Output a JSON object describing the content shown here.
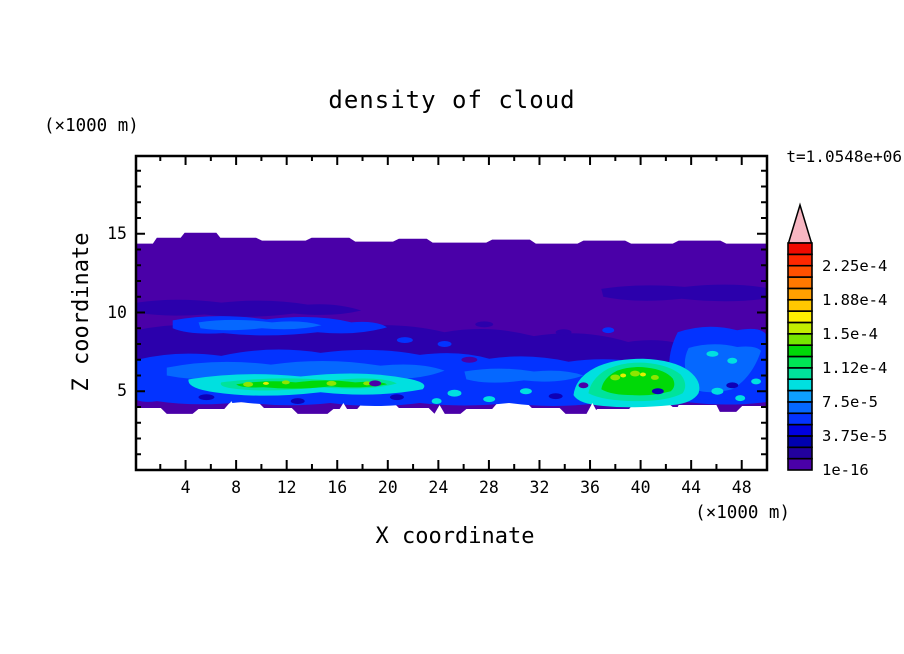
{
  "title": "density of cloud",
  "timestamp": "t=1.0548e+06",
  "axes": {
    "x": {
      "label": "X coordinate",
      "unit": "(×1000 m)",
      "range": [
        0,
        50
      ],
      "ticks": [
        4,
        8,
        12,
        16,
        20,
        24,
        28,
        32,
        36,
        40,
        44,
        48
      ],
      "minor_tick_step": 2
    },
    "z": {
      "label": "Z coordinate",
      "unit": "(×1000 m)",
      "range": [
        0,
        20
      ],
      "ticks": [
        5,
        10,
        15
      ],
      "minor_tick_step": 1
    }
  },
  "colorbar": {
    "labels": [
      "2.25e-4",
      "1.88e-4",
      "1.5e-4",
      "1.12e-4",
      "7.5e-5",
      "3.75e-5",
      "1e-16"
    ],
    "label_every_n_segments": 3,
    "segment_colors_bottom_to_top": [
      "#4A00A8",
      "#22009E",
      "#0000AF",
      "#0000E0",
      "#0333FF",
      "#0568FF",
      "#0E9FFF",
      "#00E0E0",
      "#00E39B",
      "#00E455",
      "#00D907",
      "#76E600",
      "#C3EE00",
      "#FFF100",
      "#FFC800",
      "#FFA000",
      "#FF7800",
      "#FF5000",
      "#FF2800",
      "#EF0A00"
    ],
    "overflow_arrow_color": "#F7B6C2"
  },
  "chart_data": {
    "type": "heatmap",
    "title": "density of cloud",
    "xlabel": "X coordinate",
    "ylabel": "Z coordinate",
    "x_unit": "(×1000 m)",
    "y_unit": "(×1000 m)",
    "xlim": [
      0,
      50
    ],
    "ylim": [
      0,
      20
    ],
    "x_ticks": [
      4,
      8,
      12,
      16,
      20,
      24,
      28,
      32,
      36,
      40,
      44,
      48
    ],
    "y_ticks": [
      5,
      10,
      15
    ],
    "time_annotation": "t=1.0548e+06",
    "contour_levels": [
      1e-16,
      1.25e-05,
      2.5e-05,
      3.75e-05,
      5e-05,
      6.25e-05,
      7.5e-05,
      8.75e-05,
      0.0001,
      0.0001125,
      0.000125,
      0.0001375,
      0.00015,
      0.0001625,
      0.000175,
      0.0001875,
      0.0002,
      0.0002125,
      0.000225,
      0.0002375,
      0.00025
    ],
    "labeled_levels": [
      "1e-16",
      "3.75e-5",
      "7.5e-5",
      "1.12e-4",
      "1.5e-4",
      "1.88e-4",
      "2.25e-4"
    ],
    "legend_position": "right colorbar with overflow arrow at top",
    "grid": false,
    "features": [
      {
        "region": "whole domain",
        "description": "cloud layer fills x = 0-50 between z = 3.5 and z = 14.8; background value just above 1e-16 (purple)"
      },
      {
        "region": "z = 9-10, x = 0-25 and x = 43-50",
        "description": "darker streaks around 1.25e-5 - 2.5e-5 (indigo)"
      },
      {
        "region": "z = 4-6.5, all x",
        "description": "moderate density band 2.5e-5 - 7.5e-5 (blue shades), speckled"
      },
      {
        "region": "x = 6-18, z = 4.5-5.5",
        "description": "high density core up to ~1.4e-4 (cyan/green with yellow-green specks)"
      },
      {
        "region": "x = 35-41, z = 4-6",
        "description": "dome-shaped high density core up to ~1.5e-4 (green/yellow centre)"
      },
      {
        "region": "z < 3.4 and z > 14.8",
        "description": "no cloud (white, below 1e-16)"
      }
    ]
  }
}
